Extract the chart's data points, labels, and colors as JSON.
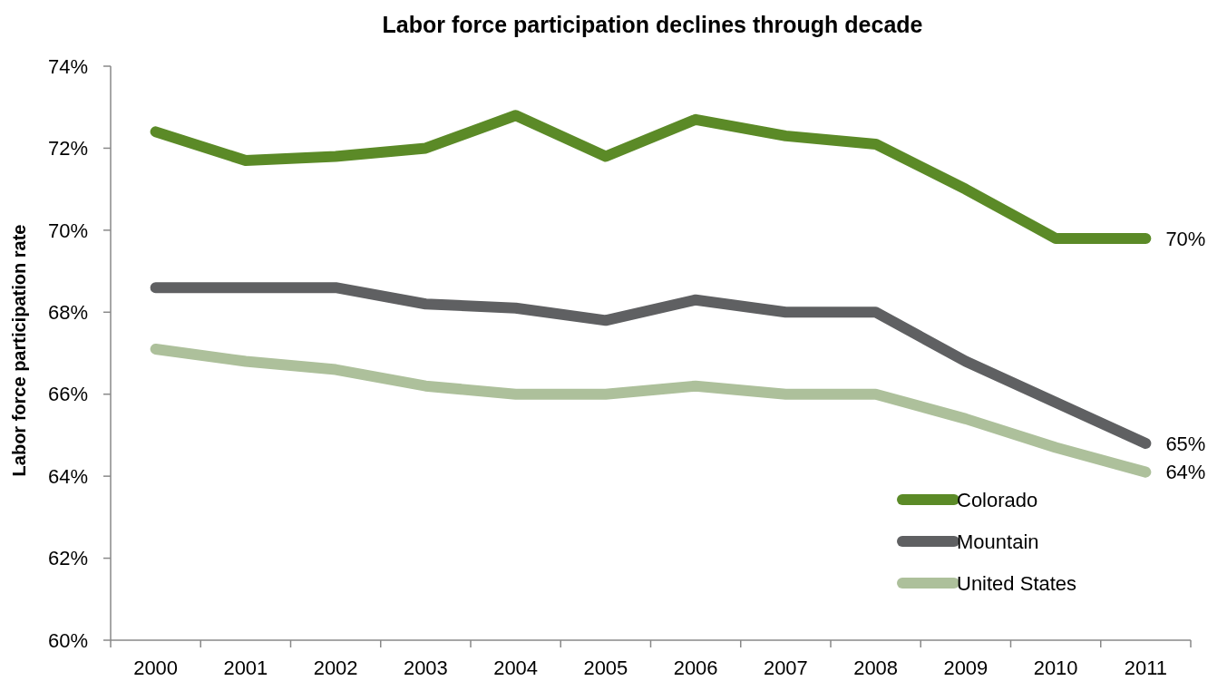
{
  "chart_data": {
    "type": "line",
    "title": "Labor force participation declines through decade",
    "ylabel": "Labor force participation rate",
    "categories": [
      "2000",
      "2001",
      "2002",
      "2003",
      "2004",
      "2005",
      "2006",
      "2007",
      "2008",
      "2009",
      "2010",
      "2011"
    ],
    "series": [
      {
        "name": "Colorado",
        "color": "#5b8a27",
        "values": [
          72.4,
          71.7,
          71.8,
          72.0,
          72.8,
          71.8,
          72.7,
          72.3,
          72.1,
          71.0,
          69.8,
          69.8
        ],
        "value_labels": [
          null,
          null,
          null,
          null,
          null,
          null,
          null,
          null,
          null,
          null,
          null,
          "70%"
        ]
      },
      {
        "name": "Mountain",
        "color": "#5f6062",
        "values": [
          68.6,
          68.6,
          68.6,
          68.2,
          68.1,
          67.8,
          68.3,
          68.0,
          68.0,
          66.8,
          65.8,
          64.8
        ],
        "value_labels": [
          null,
          null,
          null,
          null,
          null,
          null,
          null,
          null,
          null,
          null,
          null,
          "65%"
        ]
      },
      {
        "name": "United States",
        "color": "#adc09b",
        "values": [
          67.1,
          66.8,
          66.6,
          66.2,
          66.0,
          66.0,
          66.2,
          66.0,
          66.0,
          65.4,
          64.7,
          64.1
        ],
        "value_labels": [
          null,
          null,
          null,
          null,
          null,
          null,
          null,
          null,
          null,
          null,
          null,
          "64%"
        ]
      }
    ],
    "ylim": [
      60,
      74
    ],
    "yticks": [
      {
        "value": 60,
        "label": "60%"
      },
      {
        "value": 62,
        "label": "62%"
      },
      {
        "value": 64,
        "label": "64%"
      },
      {
        "value": 66,
        "label": "66%"
      },
      {
        "value": 68,
        "label": "68%"
      },
      {
        "value": 70,
        "label": "70%"
      },
      {
        "value": 72,
        "label": "72%"
      },
      {
        "value": 74,
        "label": "74%"
      }
    ],
    "grid": false,
    "legend": "bottom right",
    "marker": "none",
    "line_style": "solid"
  }
}
